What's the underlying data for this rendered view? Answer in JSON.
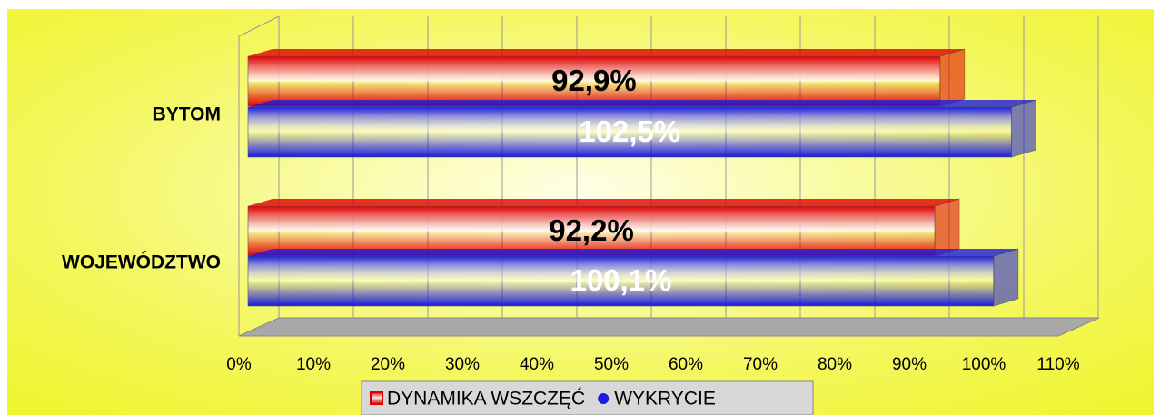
{
  "chart_data": {
    "type": "bar",
    "orientation": "horizontal",
    "three_d": true,
    "categories": [
      "BYTOM",
      "WOJEWÓDZTWO"
    ],
    "series": [
      {
        "name": "DYNAMIKA WSZCZĘĆ",
        "color": "#e00000",
        "values": [
          92.9,
          92.2
        ],
        "value_labels": [
          "92,9%",
          "92,2%"
        ]
      },
      {
        "name": "WYKRYCIE",
        "color": "#1a1ae0",
        "values": [
          102.5,
          100.1
        ],
        "value_labels": [
          "102,5%",
          "100,1%"
        ]
      }
    ],
    "xlim": [
      0,
      110
    ],
    "xticks": [
      {
        "value": 0,
        "label": "0%"
      },
      {
        "value": 10,
        "label": "10%"
      },
      {
        "value": 20,
        "label": "20%"
      },
      {
        "value": 30,
        "label": "30%"
      },
      {
        "value": 40,
        "label": "40%"
      },
      {
        "value": 50,
        "label": "50%"
      },
      {
        "value": 60,
        "label": "60%"
      },
      {
        "value": 70,
        "label": "70%"
      },
      {
        "value": 80,
        "label": "80%"
      },
      {
        "value": 90,
        "label": "90%"
      },
      {
        "value": 100,
        "label": "100%"
      },
      {
        "value": 110,
        "label": "110%"
      }
    ],
    "grid": true,
    "legend": "bottom"
  }
}
